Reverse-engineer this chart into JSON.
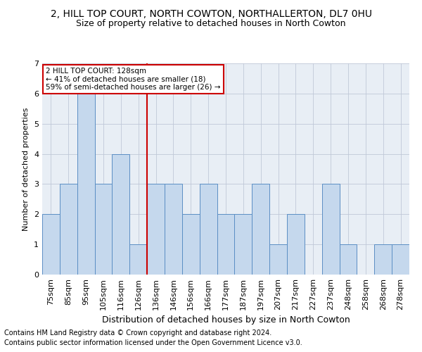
{
  "title": "2, HILL TOP COURT, NORTH COWTON, NORTHALLERTON, DL7 0HU",
  "subtitle": "Size of property relative to detached houses in North Cowton",
  "xlabel": "Distribution of detached houses by size in North Cowton",
  "ylabel": "Number of detached properties",
  "categories": [
    "75sqm",
    "85sqm",
    "95sqm",
    "105sqm",
    "116sqm",
    "126sqm",
    "136sqm",
    "146sqm",
    "156sqm",
    "166sqm",
    "177sqm",
    "187sqm",
    "197sqm",
    "207sqm",
    "217sqm",
    "227sqm",
    "237sqm",
    "248sqm",
    "258sqm",
    "268sqm",
    "278sqm"
  ],
  "values": [
    2,
    3,
    6,
    3,
    4,
    1,
    3,
    3,
    2,
    3,
    2,
    2,
    3,
    1,
    2,
    0,
    3,
    1,
    0,
    1,
    1
  ],
  "bar_color": "#c5d8ed",
  "bar_edge_color": "#5b8ec4",
  "highlight_index": 5,
  "highlight_line_color": "#cc0000",
  "highlight_box_text": "2 HILL TOP COURT: 128sqm\n← 41% of detached houses are smaller (18)\n59% of semi-detached houses are larger (26) →",
  "box_edge_color": "#cc0000",
  "ylim": [
    0,
    7
  ],
  "yticks": [
    0,
    1,
    2,
    3,
    4,
    5,
    6,
    7
  ],
  "footnote1": "Contains HM Land Registry data © Crown copyright and database right 2024.",
  "footnote2": "Contains public sector information licensed under the Open Government Licence v3.0.",
  "title_fontsize": 10,
  "subtitle_fontsize": 9,
  "xlabel_fontsize": 9,
  "ylabel_fontsize": 8,
  "tick_fontsize": 8,
  "footnote_fontsize": 7,
  "bg_color": "#e8eef5"
}
